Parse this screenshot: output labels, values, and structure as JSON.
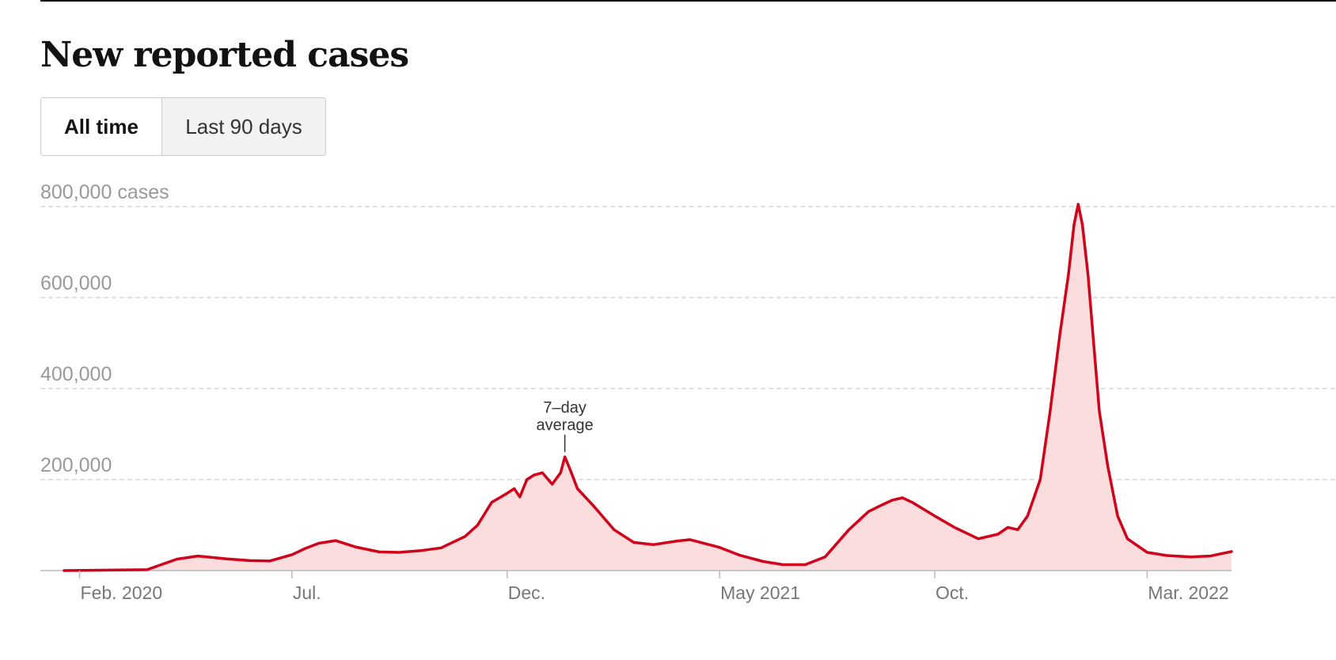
{
  "title": "New reported cases",
  "toggle": {
    "all_time": "All time",
    "last_90_days": "Last 90 days",
    "selected": "all_time"
  },
  "colors": {
    "line": "#d0021b",
    "area": "#fbdddd",
    "grid": "#d6d6d6",
    "axis": "#bbbbbb"
  },
  "chart_data": {
    "type": "area",
    "title": "New reported cases",
    "xlabel": "",
    "ylabel": "",
    "ylim": [
      0,
      800000
    ],
    "y_ticks": [
      {
        "value": 200000,
        "label": "200,000"
      },
      {
        "value": 400000,
        "label": "400,000"
      },
      {
        "value": 600000,
        "label": "600,000"
      },
      {
        "value": 800000,
        "label": "800,000 cases"
      }
    ],
    "x_range": [
      "2020-01-21",
      "2022-04-30"
    ],
    "x_ticks": [
      {
        "date": "2020-02-01",
        "label": "Feb. 2020"
      },
      {
        "date": "2020-07-01",
        "label": "Jul."
      },
      {
        "date": "2020-12-01",
        "label": "Dec."
      },
      {
        "date": "2021-05-01",
        "label": "May 2021"
      },
      {
        "date": "2021-10-01",
        "label": "Oct."
      },
      {
        "date": "2022-03-01",
        "label": "Mar. 2022"
      }
    ],
    "grid": "horizontal-dashed",
    "annotation": {
      "date": "2021-01-11",
      "value": 250000,
      "lines": [
        "7–day",
        "average"
      ]
    },
    "series": [
      {
        "x": [
          "2020-01-21",
          "2020-03-20",
          "2020-04-10",
          "2020-04-25",
          "2020-05-15",
          "2020-06-01",
          "2020-06-15",
          "2020-07-01",
          "2020-07-10",
          "2020-07-20",
          "2020-08-01",
          "2020-08-15",
          "2020-09-01",
          "2020-09-15",
          "2020-10-01",
          "2020-10-15",
          "2020-11-01",
          "2020-11-10",
          "2020-11-20",
          "2020-11-30",
          "2020-12-06",
          "2020-12-10",
          "2020-12-15",
          "2020-12-20",
          "2020-12-26",
          "2021-01-02",
          "2021-01-08",
          "2021-01-11",
          "2021-01-15",
          "2021-01-20",
          "2021-02-01",
          "2021-02-15",
          "2021-03-01",
          "2021-03-15",
          "2021-04-01",
          "2021-04-10",
          "2021-05-01",
          "2021-05-15",
          "2021-06-01",
          "2021-06-15",
          "2021-07-01",
          "2021-07-15",
          "2021-08-01",
          "2021-08-15",
          "2021-08-25",
          "2021-09-01",
          "2021-09-08",
          "2021-09-15",
          "2021-10-01",
          "2021-10-15",
          "2021-11-01",
          "2021-11-15",
          "2021-11-22",
          "2021-11-29",
          "2021-12-06",
          "2021-12-15",
          "2021-12-22",
          "2021-12-29",
          "2022-01-04",
          "2022-01-08",
          "2022-01-11",
          "2022-01-14",
          "2022-01-18",
          "2022-01-22",
          "2022-01-26",
          "2022-02-01",
          "2022-02-08",
          "2022-02-15",
          "2022-03-01",
          "2022-03-15",
          "2022-04-01",
          "2022-04-15",
          "2022-04-30"
        ],
        "values": [
          0,
          2000,
          25000,
          32000,
          26000,
          22000,
          21000,
          35000,
          48000,
          60000,
          66000,
          52000,
          41000,
          40000,
          44000,
          50000,
          75000,
          100000,
          150000,
          168000,
          180000,
          162000,
          200000,
          210000,
          215000,
          190000,
          215000,
          250000,
          220000,
          180000,
          140000,
          90000,
          62000,
          57000,
          65000,
          68000,
          51000,
          34000,
          20000,
          13000,
          13000,
          30000,
          90000,
          130000,
          145000,
          155000,
          160000,
          150000,
          120000,
          95000,
          70000,
          80000,
          95000,
          90000,
          120000,
          200000,
          350000,
          520000,
          650000,
          760000,
          805000,
          760000,
          650000,
          500000,
          350000,
          230000,
          120000,
          70000,
          40000,
          33000,
          30000,
          32000,
          42000
        ]
      }
    ]
  }
}
